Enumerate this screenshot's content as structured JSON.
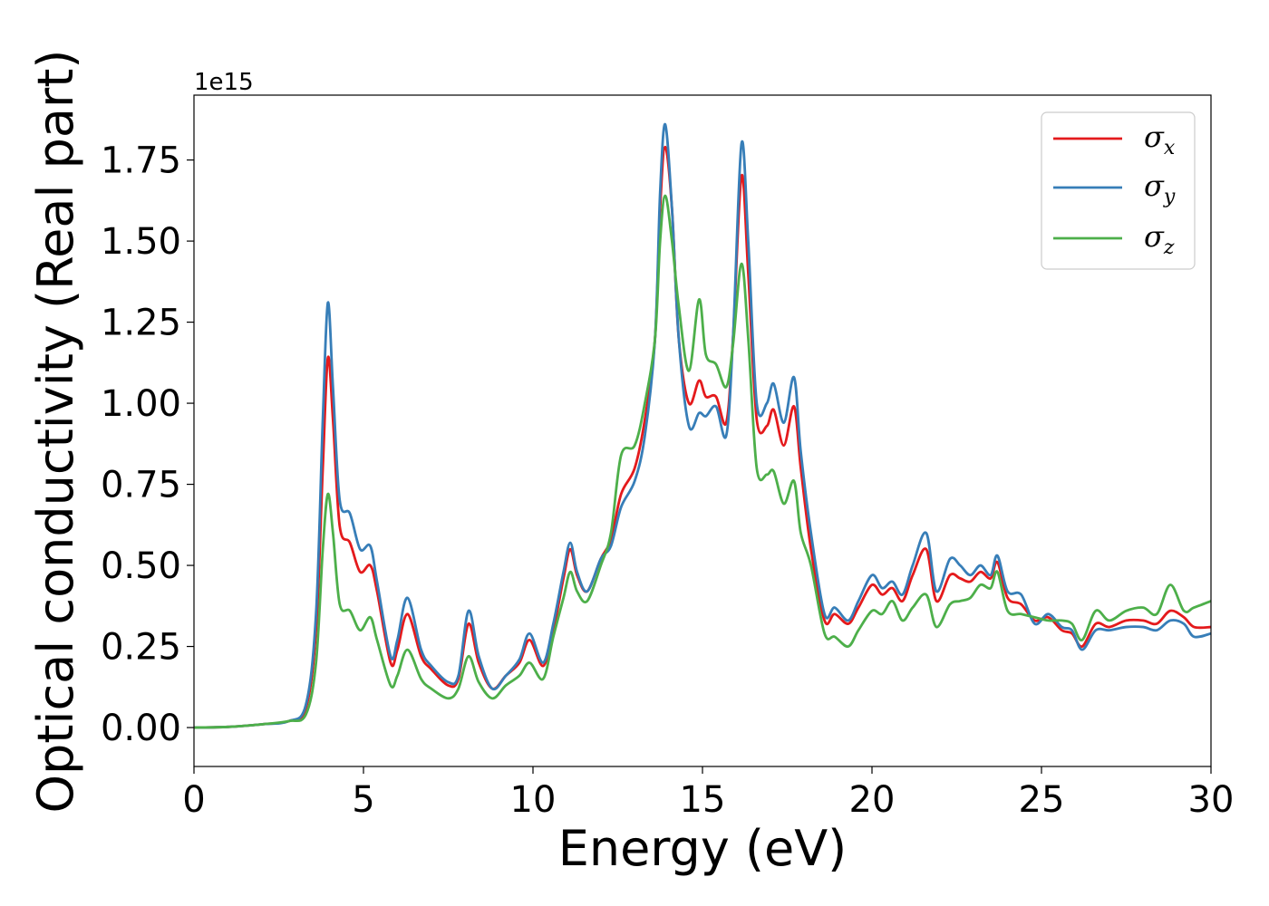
{
  "chart_data": {
    "type": "line",
    "xlabel": "Energy (eV)",
    "ylabel": "Optical conductivity (Real part)",
    "y_offset_text": "1e15",
    "xlim": [
      0,
      30
    ],
    "ylim": [
      -0.12,
      1.95
    ],
    "x_ticks": [
      0,
      5,
      10,
      15,
      20,
      25,
      30
    ],
    "x_tick_labels": [
      "0",
      "5",
      "10",
      "15",
      "20",
      "25",
      "30"
    ],
    "y_ticks": [
      0,
      0.25,
      0.5,
      0.75,
      1.0,
      1.25,
      1.5,
      1.75
    ],
    "y_tick_labels": [
      "0.00",
      "0.25",
      "0.50",
      "0.75",
      "1.00",
      "1.25",
      "1.50",
      "1.75"
    ],
    "grid": false,
    "legend_position": "top-right",
    "series": [
      {
        "name": "σx",
        "symbol": "σ",
        "subscript": "x",
        "color": "#e41a1c",
        "points": [
          [
            0,
            0
          ],
          [
            1,
            0.002
          ],
          [
            2,
            0.01
          ],
          [
            2.8,
            0.02
          ],
          [
            3.3,
            0.06
          ],
          [
            3.6,
            0.3
          ],
          [
            3.8,
            0.8
          ],
          [
            3.95,
            1.14
          ],
          [
            4.1,
            0.95
          ],
          [
            4.3,
            0.62
          ],
          [
            4.6,
            0.57
          ],
          [
            4.9,
            0.48
          ],
          [
            5.2,
            0.5
          ],
          [
            5.4,
            0.42
          ],
          [
            5.8,
            0.2
          ],
          [
            6.0,
            0.24
          ],
          [
            6.3,
            0.35
          ],
          [
            6.7,
            0.22
          ],
          [
            7.0,
            0.18
          ],
          [
            7.5,
            0.13
          ],
          [
            7.8,
            0.15
          ],
          [
            8.1,
            0.32
          ],
          [
            8.4,
            0.2
          ],
          [
            8.8,
            0.12
          ],
          [
            9.2,
            0.16
          ],
          [
            9.6,
            0.2
          ],
          [
            9.9,
            0.27
          ],
          [
            10.3,
            0.19
          ],
          [
            10.6,
            0.3
          ],
          [
            10.9,
            0.46
          ],
          [
            11.1,
            0.55
          ],
          [
            11.3,
            0.47
          ],
          [
            11.6,
            0.42
          ],
          [
            12.0,
            0.52
          ],
          [
            12.3,
            0.58
          ],
          [
            12.6,
            0.72
          ],
          [
            13.0,
            0.8
          ],
          [
            13.3,
            0.95
          ],
          [
            13.6,
            1.2
          ],
          [
            13.75,
            1.6
          ],
          [
            13.9,
            1.79
          ],
          [
            14.1,
            1.6
          ],
          [
            14.3,
            1.2
          ],
          [
            14.6,
            1.0
          ],
          [
            14.9,
            1.07
          ],
          [
            15.1,
            1.02
          ],
          [
            15.4,
            1.02
          ],
          [
            15.7,
            0.94
          ],
          [
            15.9,
            1.2
          ],
          [
            16.15,
            1.7
          ],
          [
            16.35,
            1.4
          ],
          [
            16.6,
            0.95
          ],
          [
            16.9,
            0.93
          ],
          [
            17.1,
            0.98
          ],
          [
            17.4,
            0.87
          ],
          [
            17.7,
            0.99
          ],
          [
            17.9,
            0.8
          ],
          [
            18.2,
            0.55
          ],
          [
            18.6,
            0.33
          ],
          [
            18.9,
            0.35
          ],
          [
            19.3,
            0.32
          ],
          [
            19.6,
            0.37
          ],
          [
            20.0,
            0.44
          ],
          [
            20.3,
            0.41
          ],
          [
            20.6,
            0.43
          ],
          [
            20.9,
            0.39
          ],
          [
            21.2,
            0.47
          ],
          [
            21.6,
            0.55
          ],
          [
            21.9,
            0.39
          ],
          [
            22.3,
            0.47
          ],
          [
            22.6,
            0.46
          ],
          [
            22.9,
            0.45
          ],
          [
            23.2,
            0.48
          ],
          [
            23.5,
            0.46
          ],
          [
            23.7,
            0.51
          ],
          [
            24.0,
            0.4
          ],
          [
            24.4,
            0.38
          ],
          [
            24.8,
            0.33
          ],
          [
            25.2,
            0.34
          ],
          [
            25.6,
            0.3
          ],
          [
            25.9,
            0.29
          ],
          [
            26.2,
            0.25
          ],
          [
            26.6,
            0.32
          ],
          [
            27.0,
            0.31
          ],
          [
            27.5,
            0.33
          ],
          [
            28.0,
            0.33
          ],
          [
            28.4,
            0.32
          ],
          [
            28.8,
            0.36
          ],
          [
            29.2,
            0.34
          ],
          [
            29.5,
            0.31
          ],
          [
            30,
            0.31
          ]
        ]
      },
      {
        "name": "σy",
        "symbol": "σ",
        "subscript": "y",
        "color": "#377eb8",
        "points": [
          [
            0,
            0
          ],
          [
            1,
            0.002
          ],
          [
            2,
            0.01
          ],
          [
            2.8,
            0.02
          ],
          [
            3.3,
            0.07
          ],
          [
            3.6,
            0.35
          ],
          [
            3.8,
            0.95
          ],
          [
            3.95,
            1.31
          ],
          [
            4.1,
            1.05
          ],
          [
            4.3,
            0.7
          ],
          [
            4.6,
            0.66
          ],
          [
            4.9,
            0.55
          ],
          [
            5.2,
            0.56
          ],
          [
            5.4,
            0.45
          ],
          [
            5.8,
            0.22
          ],
          [
            6.0,
            0.27
          ],
          [
            6.3,
            0.4
          ],
          [
            6.7,
            0.24
          ],
          [
            7.0,
            0.19
          ],
          [
            7.5,
            0.14
          ],
          [
            7.8,
            0.16
          ],
          [
            8.1,
            0.36
          ],
          [
            8.4,
            0.22
          ],
          [
            8.8,
            0.12
          ],
          [
            9.2,
            0.16
          ],
          [
            9.6,
            0.21
          ],
          [
            9.9,
            0.29
          ],
          [
            10.3,
            0.2
          ],
          [
            10.6,
            0.32
          ],
          [
            10.9,
            0.48
          ],
          [
            11.1,
            0.57
          ],
          [
            11.3,
            0.48
          ],
          [
            11.6,
            0.42
          ],
          [
            12.0,
            0.52
          ],
          [
            12.3,
            0.56
          ],
          [
            12.6,
            0.68
          ],
          [
            13.0,
            0.76
          ],
          [
            13.3,
            0.9
          ],
          [
            13.6,
            1.2
          ],
          [
            13.75,
            1.65
          ],
          [
            13.9,
            1.86
          ],
          [
            14.1,
            1.6
          ],
          [
            14.3,
            1.2
          ],
          [
            14.6,
            0.93
          ],
          [
            14.9,
            0.97
          ],
          [
            15.1,
            0.96
          ],
          [
            15.4,
            0.99
          ],
          [
            15.7,
            0.9
          ],
          [
            15.9,
            1.2
          ],
          [
            16.15,
            1.8
          ],
          [
            16.35,
            1.5
          ],
          [
            16.6,
            1.0
          ],
          [
            16.9,
            1.0
          ],
          [
            17.1,
            1.06
          ],
          [
            17.4,
            0.94
          ],
          [
            17.7,
            1.08
          ],
          [
            17.9,
            0.85
          ],
          [
            18.2,
            0.6
          ],
          [
            18.6,
            0.35
          ],
          [
            18.9,
            0.37
          ],
          [
            19.3,
            0.33
          ],
          [
            19.6,
            0.39
          ],
          [
            20.0,
            0.47
          ],
          [
            20.3,
            0.43
          ],
          [
            20.6,
            0.45
          ],
          [
            20.9,
            0.41
          ],
          [
            21.2,
            0.5
          ],
          [
            21.6,
            0.6
          ],
          [
            21.9,
            0.42
          ],
          [
            22.3,
            0.52
          ],
          [
            22.6,
            0.5
          ],
          [
            22.9,
            0.47
          ],
          [
            23.2,
            0.5
          ],
          [
            23.5,
            0.47
          ],
          [
            23.7,
            0.53
          ],
          [
            24.0,
            0.42
          ],
          [
            24.4,
            0.41
          ],
          [
            24.8,
            0.32
          ],
          [
            25.2,
            0.35
          ],
          [
            25.6,
            0.31
          ],
          [
            25.9,
            0.3
          ],
          [
            26.2,
            0.24
          ],
          [
            26.6,
            0.3
          ],
          [
            27.0,
            0.3
          ],
          [
            27.5,
            0.31
          ],
          [
            28.0,
            0.31
          ],
          [
            28.4,
            0.3
          ],
          [
            28.8,
            0.33
          ],
          [
            29.2,
            0.32
          ],
          [
            29.5,
            0.28
          ],
          [
            30,
            0.29
          ]
        ]
      },
      {
        "name": "σz",
        "symbol": "σ",
        "subscript": "z",
        "color": "#4daf4a",
        "points": [
          [
            0,
            0
          ],
          [
            1,
            0.002
          ],
          [
            2,
            0.01
          ],
          [
            2.8,
            0.02
          ],
          [
            3.3,
            0.04
          ],
          [
            3.6,
            0.2
          ],
          [
            3.8,
            0.55
          ],
          [
            3.95,
            0.72
          ],
          [
            4.1,
            0.6
          ],
          [
            4.3,
            0.38
          ],
          [
            4.6,
            0.36
          ],
          [
            4.9,
            0.3
          ],
          [
            5.2,
            0.34
          ],
          [
            5.4,
            0.27
          ],
          [
            5.8,
            0.13
          ],
          [
            6.0,
            0.16
          ],
          [
            6.3,
            0.24
          ],
          [
            6.7,
            0.15
          ],
          [
            7.0,
            0.12
          ],
          [
            7.5,
            0.09
          ],
          [
            7.8,
            0.12
          ],
          [
            8.1,
            0.22
          ],
          [
            8.4,
            0.14
          ],
          [
            8.8,
            0.09
          ],
          [
            9.2,
            0.13
          ],
          [
            9.6,
            0.16
          ],
          [
            9.9,
            0.2
          ],
          [
            10.3,
            0.15
          ],
          [
            10.6,
            0.28
          ],
          [
            10.9,
            0.4
          ],
          [
            11.1,
            0.48
          ],
          [
            11.3,
            0.42
          ],
          [
            11.6,
            0.39
          ],
          [
            12.0,
            0.5
          ],
          [
            12.3,
            0.6
          ],
          [
            12.6,
            0.84
          ],
          [
            13.0,
            0.87
          ],
          [
            13.3,
            1.0
          ],
          [
            13.6,
            1.2
          ],
          [
            13.75,
            1.5
          ],
          [
            13.9,
            1.64
          ],
          [
            14.1,
            1.5
          ],
          [
            14.3,
            1.3
          ],
          [
            14.6,
            1.1
          ],
          [
            14.9,
            1.32
          ],
          [
            15.1,
            1.15
          ],
          [
            15.4,
            1.12
          ],
          [
            15.7,
            1.05
          ],
          [
            15.9,
            1.18
          ],
          [
            16.15,
            1.43
          ],
          [
            16.35,
            1.2
          ],
          [
            16.6,
            0.8
          ],
          [
            16.9,
            0.78
          ],
          [
            17.1,
            0.79
          ],
          [
            17.4,
            0.69
          ],
          [
            17.7,
            0.76
          ],
          [
            17.9,
            0.6
          ],
          [
            18.2,
            0.5
          ],
          [
            18.6,
            0.29
          ],
          [
            18.9,
            0.28
          ],
          [
            19.3,
            0.25
          ],
          [
            19.6,
            0.3
          ],
          [
            20.0,
            0.36
          ],
          [
            20.3,
            0.35
          ],
          [
            20.6,
            0.39
          ],
          [
            20.9,
            0.33
          ],
          [
            21.2,
            0.37
          ],
          [
            21.6,
            0.41
          ],
          [
            21.9,
            0.31
          ],
          [
            22.3,
            0.38
          ],
          [
            22.6,
            0.39
          ],
          [
            22.9,
            0.4
          ],
          [
            23.2,
            0.44
          ],
          [
            23.5,
            0.43
          ],
          [
            23.7,
            0.48
          ],
          [
            24.0,
            0.36
          ],
          [
            24.4,
            0.35
          ],
          [
            24.8,
            0.34
          ],
          [
            25.2,
            0.33
          ],
          [
            25.6,
            0.33
          ],
          [
            25.9,
            0.32
          ],
          [
            26.2,
            0.27
          ],
          [
            26.6,
            0.36
          ],
          [
            27.0,
            0.33
          ],
          [
            27.5,
            0.36
          ],
          [
            28.0,
            0.37
          ],
          [
            28.4,
            0.35
          ],
          [
            28.8,
            0.44
          ],
          [
            29.2,
            0.36
          ],
          [
            29.5,
            0.37
          ],
          [
            30,
            0.39
          ]
        ]
      }
    ]
  }
}
